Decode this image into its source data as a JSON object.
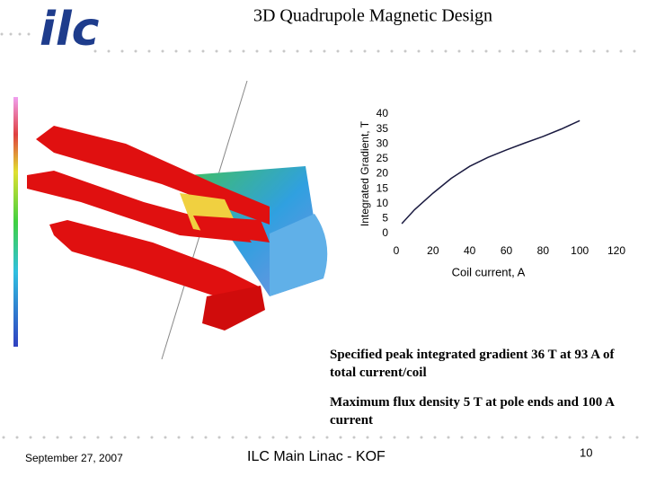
{
  "logo": "ilc",
  "title": "3D Quadrupole Magnetic Design",
  "chart_data": {
    "type": "line",
    "x_label": "Coil current, A",
    "y_label": "Integrated Gradient, T",
    "x": [
      3,
      10,
      20,
      30,
      40,
      50,
      60,
      70,
      80,
      90,
      100
    ],
    "series": [
      {
        "name": "Integrated gradient",
        "color": "#1a1a40",
        "values": [
          3.3,
          8,
          13.5,
          18.5,
          22.5,
          25.5,
          28,
          30.3,
          32.5,
          35,
          37.8
        ]
      }
    ],
    "xlim": [
      0,
      120
    ],
    "xticks": [
      0,
      20,
      40,
      60,
      80,
      100,
      120
    ],
    "ylim": [
      0,
      40
    ],
    "yticks": [
      0,
      5,
      10,
      15,
      20,
      25,
      30,
      35,
      40
    ],
    "grid": false
  },
  "notes": [
    "Specified peak integrated gradient 36 T at 93 A of total current/coil",
    "Maximum flux density 5 T at pole ends and 100 A current"
  ],
  "footer": {
    "date": "September 27, 2007",
    "center": "ILC Main Linac - KOF",
    "page": "10"
  }
}
